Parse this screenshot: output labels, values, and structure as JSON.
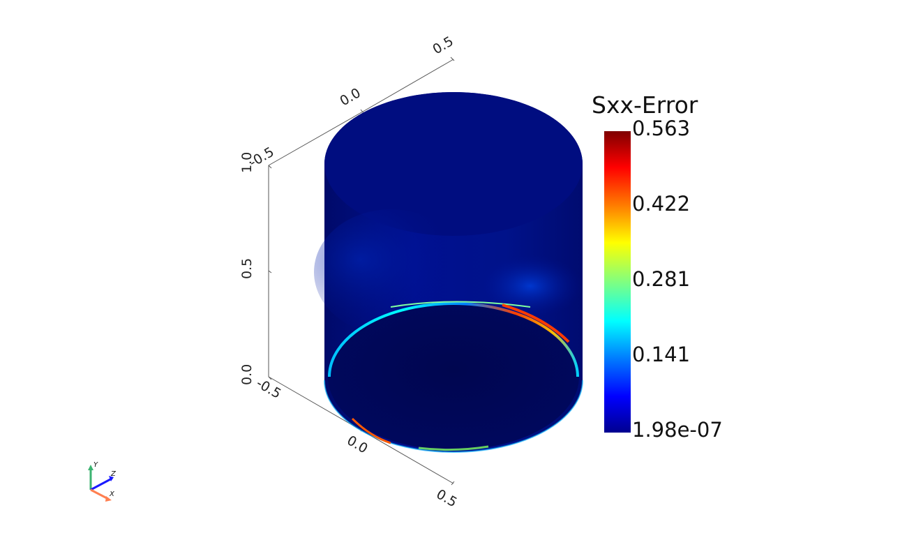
{
  "scalar_bar": {
    "title": "Sxx-Error",
    "max_label": "0.563",
    "tick_2": "0.422",
    "tick_3": "0.281",
    "tick_4": "0.141",
    "min_label": "1.98e-07",
    "range": [
      1.98e-07,
      0.563
    ],
    "colormap": [
      "#7f0000",
      "#ff0000",
      "#ff8000",
      "#ffff00",
      "#80ff80",
      "#00ffff",
      "#0080ff",
      "#0000ff",
      "#00008f"
    ]
  },
  "cube_axes": {
    "y_labels": [
      "1.0",
      "0.5",
      "0.0"
    ],
    "x_labels_top": [
      "-0.5",
      "0.0",
      "0.5"
    ],
    "x_labels_bottom": [
      "-0.5",
      "0.0",
      "0.5"
    ]
  },
  "orientation_axes": {
    "y": "Y",
    "z": "Z",
    "x": "X",
    "colors": {
      "x": "#ff7f50",
      "y": "#3cb371",
      "z": "#1a1aff"
    }
  },
  "surface": {
    "base_color": "#000a78",
    "highlight_color": "#ff2a00"
  }
}
